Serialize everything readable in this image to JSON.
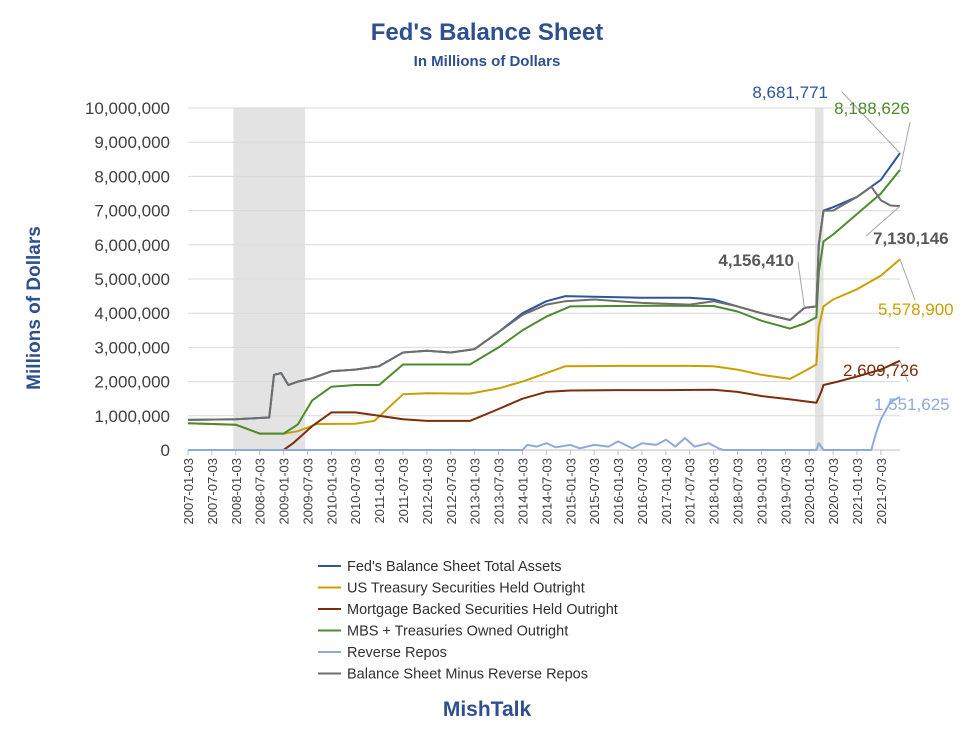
{
  "chart_data": {
    "type": "line",
    "title": "Fed's Balance Sheet",
    "subtitle": "In Millions of Dollars",
    "ylabel": "Millions of Dollars",
    "xlabel": "",
    "ylim": [
      0,
      10000000
    ],
    "y_ticks": [
      0,
      1000000,
      2000000,
      3000000,
      4000000,
      5000000,
      6000000,
      7000000,
      8000000,
      9000000,
      10000000
    ],
    "y_tick_labels": [
      "0",
      "1,000,000",
      "2,000,000",
      "3,000,000",
      "4,000,000",
      "5,000,000",
      "6,000,000",
      "7,000,000",
      "8,000,000",
      "9,000,000",
      "10,000,000"
    ],
    "x_range": [
      2007.0,
      2021.9
    ],
    "x_tick_labels": [
      "2007-01-03",
      "2007-07-03",
      "2008-01-03",
      "2008-07-03",
      "2009-01-03",
      "2009-07-03",
      "2010-01-03",
      "2010-07-03",
      "2011-01-03",
      "2011-07-03",
      "2012-01-03",
      "2012-07-03",
      "2013-01-03",
      "2013-07-03",
      "2014-01-03",
      "2014-07-03",
      "2015-01-03",
      "2015-07-03",
      "2016-01-03",
      "2016-07-03",
      "2017-01-03",
      "2017-07-03",
      "2018-01-03",
      "2018-07-03",
      "2019-01-03",
      "2019-07-03",
      "2020-01-03",
      "2020-07-03",
      "2021-01-03",
      "2021-07-03"
    ],
    "recessions": [
      [
        2007.95,
        2009.45
      ],
      [
        2020.12,
        2020.3
      ]
    ],
    "series": [
      {
        "name": "Fed's Balance Sheet Total Assets",
        "color": "#2e5597",
        "x": [
          2007.0,
          2008.0,
          2008.7,
          2008.8,
          2008.95,
          2009.1,
          2009.3,
          2009.6,
          2010.0,
          2010.5,
          2011.0,
          2011.5,
          2012.0,
          2012.5,
          2013.0,
          2013.5,
          2014.0,
          2014.5,
          2014.9,
          2015.5,
          2016.5,
          2017.5,
          2018.0,
          2018.5,
          2019.0,
          2019.6,
          2019.9,
          2020.15,
          2020.2,
          2020.3,
          2020.5,
          2021.0,
          2021.5,
          2021.9
        ],
        "values": [
          880000,
          900000,
          950000,
          2200000,
          2250000,
          1900000,
          2000000,
          2100000,
          2300000,
          2350000,
          2450000,
          2850000,
          2900000,
          2850000,
          2950000,
          3450000,
          4000000,
          4350000,
          4500000,
          4480000,
          4450000,
          4450000,
          4400000,
          4200000,
          4000000,
          3800000,
          4156410,
          4200000,
          6000000,
          7000000,
          7100000,
          7400000,
          7900000,
          8681771
        ]
      },
      {
        "name": "US Treasury Securities Held Outright",
        "color": "#c9a000",
        "x": [
          2007.0,
          2008.0,
          2008.5,
          2009.0,
          2009.3,
          2009.7,
          2010.5,
          2010.9,
          2011.5,
          2012.0,
          2012.9,
          2013.5,
          2014.0,
          2014.5,
          2014.9,
          2016.0,
          2017.5,
          2018.0,
          2018.5,
          2019.0,
          2019.6,
          2019.9,
          2020.15,
          2020.2,
          2020.3,
          2020.5,
          2021.0,
          2021.5,
          2021.9
        ],
        "values": [
          780000,
          740000,
          480000,
          480000,
          550000,
          760000,
          770000,
          850000,
          1630000,
          1660000,
          1650000,
          1800000,
          2000000,
          2250000,
          2450000,
          2460000,
          2460000,
          2450000,
          2350000,
          2200000,
          2080000,
          2300000,
          2500000,
          3600000,
          4200000,
          4400000,
          4700000,
          5100000,
          5578900
        ]
      },
      {
        "name": "Mortgage Backed Securities Held Outright",
        "color": "#7b2e0b",
        "x": [
          2007.0,
          2009.0,
          2009.2,
          2009.6,
          2010.0,
          2010.5,
          2011.0,
          2011.5,
          2012.0,
          2012.9,
          2013.5,
          2014.0,
          2014.5,
          2015.0,
          2016.0,
          2017.0,
          2018.0,
          2018.5,
          2019.0,
          2019.6,
          2020.15,
          2020.25,
          2020.3,
          2020.6,
          2021.0,
          2021.5,
          2021.9
        ],
        "values": [
          0,
          0,
          200000,
          700000,
          1100000,
          1100000,
          1000000,
          900000,
          850000,
          850000,
          1200000,
          1500000,
          1700000,
          1740000,
          1750000,
          1750000,
          1760000,
          1700000,
          1580000,
          1480000,
          1380000,
          1700000,
          1900000,
          2000000,
          2150000,
          2350000,
          2609726
        ]
      },
      {
        "name": "MBS + Treasuries Owned Outright",
        "color": "#4e8a2e",
        "x": [
          2007.0,
          2008.0,
          2008.5,
          2009.0,
          2009.3,
          2009.6,
          2010.0,
          2010.5,
          2011.0,
          2011.5,
          2012.0,
          2012.9,
          2013.5,
          2014.0,
          2014.5,
          2015.0,
          2016.0,
          2017.0,
          2018.0,
          2018.5,
          2019.0,
          2019.6,
          2019.9,
          2020.15,
          2020.2,
          2020.3,
          2020.5,
          2021.0,
          2021.5,
          2021.9
        ],
        "values": [
          780000,
          740000,
          480000,
          480000,
          750000,
          1450000,
          1850000,
          1900000,
          1900000,
          2500000,
          2500000,
          2500000,
          3000000,
          3500000,
          3900000,
          4200000,
          4210000,
          4220000,
          4210000,
          4050000,
          3780000,
          3550000,
          3700000,
          3880000,
          5200000,
          6100000,
          6300000,
          6900000,
          7500000,
          8188626
        ]
      },
      {
        "name": "Reverse Repos",
        "color": "#8eaadb",
        "x": [
          2007.0,
          2014.0,
          2014.1,
          2014.3,
          2014.5,
          2014.7,
          2015.0,
          2015.2,
          2015.5,
          2015.8,
          2016.0,
          2016.3,
          2016.5,
          2016.8,
          2017.0,
          2017.2,
          2017.4,
          2017.6,
          2017.9,
          2018.1,
          2018.2,
          2020.15,
          2020.2,
          2020.3,
          2021.0,
          2021.3,
          2021.4,
          2021.5,
          2021.7,
          2021.9
        ],
        "values": [
          0,
          0,
          150000,
          100000,
          200000,
          80000,
          150000,
          50000,
          150000,
          100000,
          250000,
          50000,
          200000,
          150000,
          300000,
          100000,
          350000,
          100000,
          200000,
          50000,
          0,
          0,
          200000,
          0,
          0,
          0,
          500000,
          900000,
          1400000,
          1551625
        ]
      },
      {
        "name": "Balance Sheet Minus Reverse Repos",
        "color": "#6e6e6e",
        "x": [
          2007.0,
          2008.0,
          2008.7,
          2008.8,
          2008.95,
          2009.1,
          2009.3,
          2009.6,
          2010.0,
          2010.5,
          2011.0,
          2011.5,
          2012.0,
          2012.5,
          2013.0,
          2013.5,
          2014.0,
          2014.5,
          2014.9,
          2015.5,
          2016.5,
          2017.5,
          2018.0,
          2018.5,
          2019.0,
          2019.6,
          2019.9,
          2020.15,
          2020.2,
          2020.3,
          2020.5,
          2021.0,
          2021.3,
          2021.5,
          2021.7,
          2021.9
        ],
        "values": [
          880000,
          900000,
          950000,
          2200000,
          2250000,
          1900000,
          2000000,
          2100000,
          2300000,
          2350000,
          2450000,
          2850000,
          2900000,
          2850000,
          2950000,
          3450000,
          3950000,
          4250000,
          4350000,
          4400000,
          4300000,
          4250000,
          4350000,
          4200000,
          4000000,
          3800000,
          4156410,
          4200000,
          6000000,
          7000000,
          7000000,
          7400000,
          7700000,
          7300000,
          7150000,
          7130146
        ]
      }
    ],
    "annotations": [
      {
        "text": "8,681,771",
        "series": 0,
        "color": "#2e5597"
      },
      {
        "text": "8,188,626",
        "series": 3,
        "color": "#4e8a2e"
      },
      {
        "text": "4,156,410",
        "series": 5,
        "color": "#595959"
      },
      {
        "text": "7,130,146",
        "series": 5,
        "color": "#595959"
      },
      {
        "text": "5,578,900",
        "series": 1,
        "color": "#c9a000"
      },
      {
        "text": "2,609,726",
        "series": 2,
        "color": "#7b2e0b"
      },
      {
        "text": "1,551,625",
        "series": 4,
        "color": "#8eaadb"
      }
    ],
    "legend_placement": "bottom"
  },
  "footer": {
    "brand": "MishTalk"
  },
  "colors": {
    "title": "#2f4f8f",
    "recession": "#e3e3e3",
    "axis": "#bfbfbf"
  }
}
